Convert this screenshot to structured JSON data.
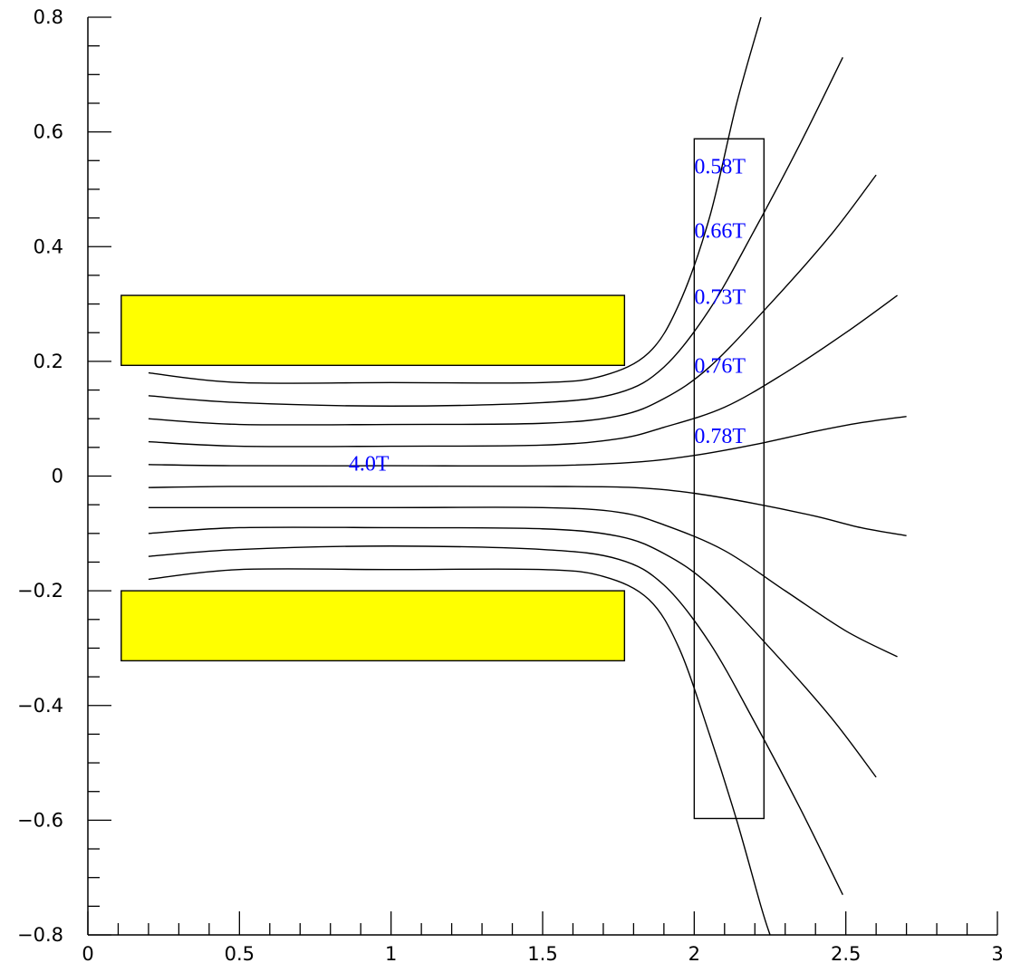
{
  "chart_data": {
    "type": "line",
    "title": "",
    "xlabel": "",
    "ylabel": "",
    "xlim": [
      0,
      3
    ],
    "ylim": [
      -0.8,
      0.8
    ],
    "grid": false,
    "x_ticks": [
      {
        "value": 0,
        "label": "0"
      },
      {
        "value": 0.5,
        "label": "0.5"
      },
      {
        "value": 1,
        "label": "1"
      },
      {
        "value": 1.5,
        "label": "1.5"
      },
      {
        "value": 2,
        "label": "2"
      },
      {
        "value": 2.5,
        "label": "2.5"
      },
      {
        "value": 3,
        "label": "3"
      }
    ],
    "y_ticks": [
      {
        "value": 0.8,
        "label": "0.8"
      },
      {
        "value": 0.6,
        "label": "0.6"
      },
      {
        "value": 0.4,
        "label": "0.4"
      },
      {
        "value": 0.2,
        "label": "0.2"
      },
      {
        "value": 0,
        "label": "0"
      },
      {
        "value": -0.2,
        "label": "−0.2"
      },
      {
        "value": -0.4,
        "label": "−0.4"
      },
      {
        "value": -0.6,
        "label": "−0.6"
      },
      {
        "value": -0.8,
        "label": "−0.8"
      }
    ],
    "regions": [
      {
        "x": [
          0.11,
          1.77
        ],
        "y": [
          0.193,
          0.315
        ],
        "fill": "#ffff00"
      },
      {
        "x": [
          0.11,
          1.77
        ],
        "y": [
          -0.322,
          -0.2
        ],
        "fill": "#ffff00"
      },
      {
        "x": [
          2.0,
          2.23
        ],
        "y": [
          -0.597,
          0.588
        ],
        "fill": "none"
      }
    ],
    "series": [
      {
        "points": [
          [
            0.2,
            0.18
          ],
          [
            0.5,
            0.163
          ],
          [
            1.0,
            0.163
          ],
          [
            1.5,
            0.163
          ],
          [
            1.7,
            0.175
          ],
          [
            1.85,
            0.215
          ],
          [
            1.95,
            0.3
          ],
          [
            2.05,
            0.45
          ],
          [
            2.14,
            0.65
          ],
          [
            2.22,
            0.8
          ]
        ]
      },
      {
        "points": [
          [
            0.2,
            0.14
          ],
          [
            0.5,
            0.128
          ],
          [
            1.0,
            0.122
          ],
          [
            1.5,
            0.128
          ],
          [
            1.75,
            0.145
          ],
          [
            1.9,
            0.19
          ],
          [
            2.05,
            0.29
          ],
          [
            2.2,
            0.43
          ],
          [
            2.35,
            0.58
          ],
          [
            2.49,
            0.73
          ]
        ]
      },
      {
        "points": [
          [
            0.2,
            0.1
          ],
          [
            0.5,
            0.09
          ],
          [
            1.0,
            0.09
          ],
          [
            1.5,
            0.092
          ],
          [
            1.75,
            0.105
          ],
          [
            1.9,
            0.135
          ],
          [
            2.05,
            0.19
          ],
          [
            2.25,
            0.3
          ],
          [
            2.45,
            0.42
          ],
          [
            2.6,
            0.525
          ]
        ]
      },
      {
        "points": [
          [
            0.2,
            0.06
          ],
          [
            0.5,
            0.052
          ],
          [
            1.0,
            0.052
          ],
          [
            1.5,
            0.054
          ],
          [
            1.75,
            0.065
          ],
          [
            1.9,
            0.085
          ],
          [
            2.1,
            0.12
          ],
          [
            2.3,
            0.18
          ],
          [
            2.5,
            0.25
          ],
          [
            2.67,
            0.315
          ]
        ]
      },
      {
        "points": [
          [
            0.2,
            0.02
          ],
          [
            0.5,
            0.018
          ],
          [
            1.0,
            0.018
          ],
          [
            1.5,
            0.018
          ],
          [
            1.8,
            0.024
          ],
          [
            2.0,
            0.036
          ],
          [
            2.2,
            0.055
          ],
          [
            2.4,
            0.078
          ],
          [
            2.55,
            0.093
          ],
          [
            2.7,
            0.104
          ]
        ]
      },
      {
        "points": [
          [
            0.2,
            -0.02
          ],
          [
            0.5,
            -0.018
          ],
          [
            1.0,
            -0.018
          ],
          [
            1.5,
            -0.018
          ],
          [
            1.8,
            -0.02
          ],
          [
            2.0,
            -0.03
          ],
          [
            2.2,
            -0.048
          ],
          [
            2.4,
            -0.07
          ],
          [
            2.55,
            -0.09
          ],
          [
            2.7,
            -0.104
          ]
        ]
      },
      {
        "points": [
          [
            0.2,
            -0.055
          ],
          [
            0.5,
            -0.055
          ],
          [
            1.0,
            -0.055
          ],
          [
            1.5,
            -0.055
          ],
          [
            1.75,
            -0.063
          ],
          [
            1.9,
            -0.085
          ],
          [
            2.1,
            -0.13
          ],
          [
            2.3,
            -0.2
          ],
          [
            2.5,
            -0.27
          ],
          [
            2.67,
            -0.315
          ]
        ]
      },
      {
        "points": [
          [
            0.2,
            -0.1
          ],
          [
            0.5,
            -0.09
          ],
          [
            1.0,
            -0.09
          ],
          [
            1.5,
            -0.092
          ],
          [
            1.75,
            -0.105
          ],
          [
            1.9,
            -0.135
          ],
          [
            2.05,
            -0.19
          ],
          [
            2.25,
            -0.3
          ],
          [
            2.45,
            -0.42
          ],
          [
            2.6,
            -0.525
          ]
        ]
      },
      {
        "points": [
          [
            0.2,
            -0.14
          ],
          [
            0.5,
            -0.128
          ],
          [
            1.0,
            -0.122
          ],
          [
            1.5,
            -0.128
          ],
          [
            1.75,
            -0.145
          ],
          [
            1.9,
            -0.19
          ],
          [
            2.05,
            -0.29
          ],
          [
            2.2,
            -0.43
          ],
          [
            2.35,
            -0.58
          ],
          [
            2.49,
            -0.73
          ]
        ]
      },
      {
        "points": [
          [
            0.2,
            -0.18
          ],
          [
            0.5,
            -0.163
          ],
          [
            1.0,
            -0.163
          ],
          [
            1.5,
            -0.163
          ],
          [
            1.7,
            -0.175
          ],
          [
            1.85,
            -0.215
          ],
          [
            1.95,
            -0.3
          ],
          [
            2.05,
            -0.45
          ],
          [
            2.14,
            -0.6
          ],
          [
            2.22,
            -0.75
          ],
          [
            2.25,
            -0.8
          ]
        ]
      }
    ],
    "annotations": [
      {
        "text": "0.58T",
        "x": 2.0,
        "y": 0.54,
        "color": "#0000ff"
      },
      {
        "text": "0.66T",
        "x": 2.0,
        "y": 0.428,
        "color": "#0000ff"
      },
      {
        "text": "0.73T",
        "x": 2.0,
        "y": 0.313,
        "color": "#0000ff"
      },
      {
        "text": "0.76T",
        "x": 2.0,
        "y": 0.193,
        "color": "#0000ff"
      },
      {
        "text": "0.78T",
        "x": 2.0,
        "y": 0.07,
        "color": "#0000ff"
      },
      {
        "text": "4.0T",
        "x": 0.86,
        "y": 0.022,
        "color": "#0000ff"
      }
    ],
    "colors": {
      "magnet": "#ffff00",
      "label": "#0000ff",
      "line": "#000000"
    }
  }
}
